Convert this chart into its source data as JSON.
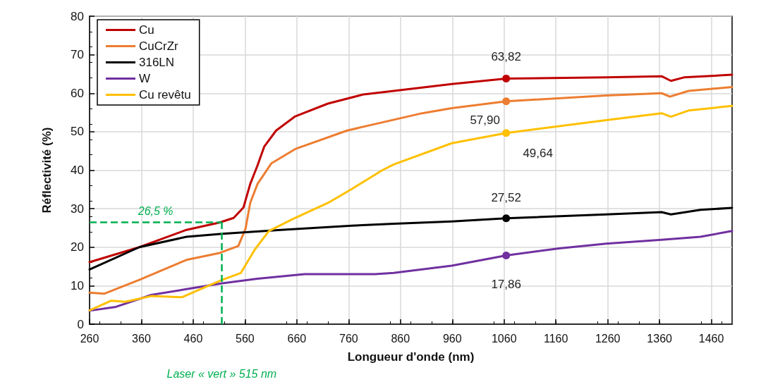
{
  "chart_data": {
    "type": "line",
    "xlabel": "Longueur d'onde (nm)",
    "ylabel": "Réflectivité (%)",
    "xlim": [
      260,
      1500
    ],
    "xticks": [
      260,
      360,
      460,
      560,
      660,
      760,
      860,
      960,
      1060,
      1160,
      1260,
      1360,
      1460
    ],
    "ylim": [
      0,
      80
    ],
    "yticks": [
      0,
      10,
      20,
      30,
      40,
      50,
      60,
      70,
      80
    ],
    "grid": true,
    "legend": "top left",
    "marker": "none",
    "line_style": "solid",
    "series": [
      {
        "name": "Cu",
        "color": "#c00000",
        "x": [
          260,
          356,
          447,
          511,
          538,
          557,
          570,
          584,
          597,
          620,
          657,
          720,
          789,
          847,
          959,
          1064,
          1257,
          1364,
          1382,
          1407,
          1500
        ],
        "values": [
          16.1,
          20.0,
          24.5,
          26.4,
          27.6,
          30.3,
          36.4,
          41.2,
          46.1,
          50.3,
          54.0,
          57.3,
          59.7,
          60.6,
          62.4,
          63.82,
          64.1,
          64.4,
          63.2,
          64.1,
          64.8
        ],
        "value_labels": [
          null,
          null,
          null,
          null,
          null,
          null,
          null,
          null,
          null,
          null,
          null,
          null,
          null,
          null,
          null,
          "63,82",
          null,
          null,
          null,
          null,
          null
        ]
      },
      {
        "name": "CuCrZr",
        "color": "#ed7d31",
        "x": [
          260,
          288,
          356,
          447,
          511,
          547,
          561,
          570,
          584,
          611,
          657,
          757,
          902,
          959,
          1064,
          1257,
          1364,
          1380,
          1416,
          1500
        ],
        "values": [
          8.2,
          7.9,
          11.5,
          16.7,
          18.5,
          20.3,
          24.8,
          31.5,
          36.4,
          41.8,
          45.5,
          50.3,
          54.8,
          56.1,
          57.9,
          59.4,
          60.0,
          59.1,
          60.6,
          61.6
        ],
        "value_labels": [
          null,
          null,
          null,
          null,
          null,
          null,
          null,
          null,
          null,
          null,
          null,
          null,
          null,
          null,
          "57,90",
          null,
          null,
          null,
          null,
          null
        ]
      },
      {
        "name": "316LN",
        "color": "#000000",
        "x": [
          260,
          356,
          447,
          516,
          629,
          766,
          847,
          959,
          1064,
          1257,
          1364,
          1382,
          1439,
          1500
        ],
        "values": [
          14.2,
          20.0,
          22.7,
          23.5,
          24.5,
          25.6,
          26.1,
          26.7,
          27.52,
          28.5,
          29.1,
          28.5,
          29.7,
          30.2
        ],
        "value_labels": [
          null,
          null,
          null,
          null,
          null,
          null,
          null,
          null,
          "27,52",
          null,
          null,
          null,
          null,
          null
        ]
      },
      {
        "name": "W",
        "color": "#7030a0",
        "x": [
          260,
          311,
          379,
          447,
          516,
          584,
          675,
          811,
          847,
          959,
          1064,
          1166,
          1257,
          1364,
          1439,
          1500
        ],
        "values": [
          3.5,
          4.5,
          7.6,
          9.1,
          10.6,
          11.8,
          13.0,
          13.0,
          13.3,
          15.2,
          17.86,
          19.7,
          20.9,
          21.9,
          22.7,
          24.2
        ],
        "value_labels": [
          null,
          null,
          null,
          null,
          null,
          null,
          null,
          null,
          null,
          null,
          "17,86",
          null,
          null,
          null,
          null,
          null
        ]
      },
      {
        "name": "Cu revêtu",
        "color": "#ffc000",
        "x": [
          260,
          302,
          329,
          379,
          438,
          484,
          516,
          552,
          579,
          606,
          652,
          720,
          766,
          825,
          847,
          959,
          1064,
          1257,
          1364,
          1382,
          1416,
          1500
        ],
        "values": [
          3.6,
          6.1,
          5.8,
          7.3,
          7.0,
          9.7,
          11.5,
          13.3,
          19.4,
          24.2,
          27.3,
          31.5,
          35.1,
          40.0,
          41.5,
          47.0,
          49.64,
          53.0,
          54.8,
          53.9,
          55.5,
          56.7
        ],
        "value_labels": [
          null,
          null,
          null,
          null,
          null,
          null,
          null,
          null,
          null,
          null,
          null,
          null,
          null,
          null,
          null,
          null,
          "49,64",
          null,
          null,
          null,
          null,
          null
        ]
      }
    ],
    "ref_lines": [
      {
        "axis": "x",
        "value": 515,
        "label": "Laser « vert » 515 nm",
        "color": "#00b050",
        "line_style": "dashed"
      },
      {
        "axis": "y",
        "value": 26.5,
        "label": "26,5 %",
        "color": "#00b050",
        "line_style": "dashed"
      }
    ]
  }
}
